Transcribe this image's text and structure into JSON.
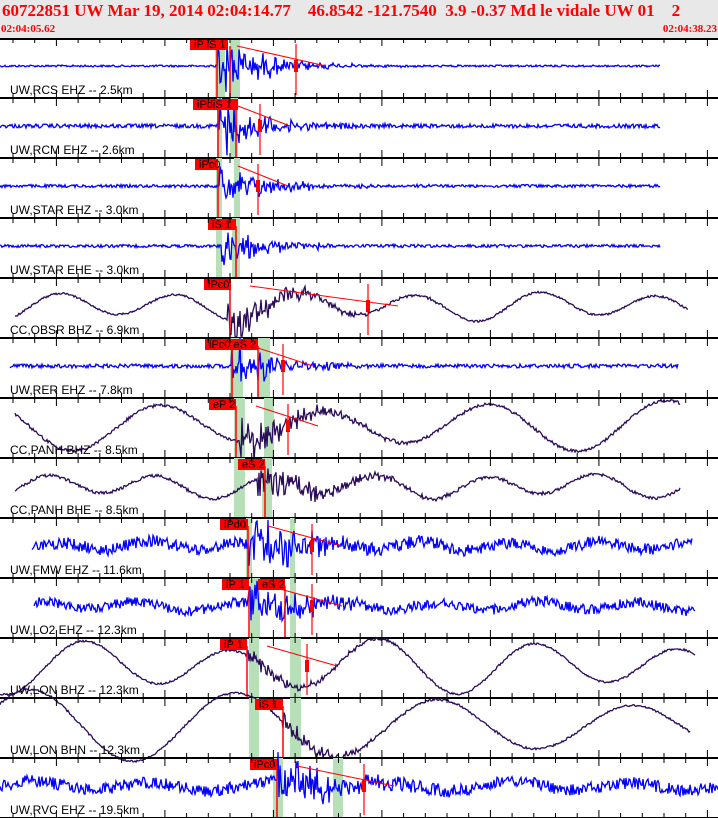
{
  "header": {
    "title": "60722851 UW Mar 19, 2014 02:04:14.77    46.8542 -121.7540  3.9 -0.37 Md le vidale UW 01    2",
    "start_time": "02:04:05.62",
    "end_time": "02:04:38.23"
  },
  "colors": {
    "header_text": "#ff0000",
    "short_period": "#0000ff",
    "broadband": "#2a0c5a",
    "pick": "#ff0000",
    "pick_window": "#b8e0b8"
  },
  "chart_data": {
    "type": "line",
    "x_range_labels": [
      "02:04:05.62",
      "02:04:38.23"
    ],
    "duration_s": 32.61,
    "traces": [
      {
        "label": "UW,RCS EHZ -- 2.5km",
        "kind": "short_period",
        "picks": [
          "iP iS 1"
        ]
      },
      {
        "label": "UW,RCM EHZ -- 2.6km",
        "kind": "short_period",
        "picks": [
          "iPdiS 1"
        ]
      },
      {
        "label": "UW,STAR EHZ -- 3.0km",
        "kind": "short_period",
        "picks": [
          "iPc0"
        ]
      },
      {
        "label": "UW,STAR EHE -- 3.0km",
        "kind": "short_period",
        "picks": [
          "iS 1"
        ]
      },
      {
        "label": "CC,OBSR BHZ -- 6.9km",
        "kind": "broadband",
        "picks": [
          "iPc0"
        ]
      },
      {
        "label": "UW,RER EHZ -- 7.8km",
        "kind": "short_period",
        "picks": [
          "iPc0 eS 2"
        ]
      },
      {
        "label": "CC,PANH BHZ -- 8.5km",
        "kind": "broadband",
        "picks": [
          "eP 2"
        ]
      },
      {
        "label": "CC,PANH BHE -- 8.5km",
        "kind": "broadband",
        "picks": [
          "eS 2"
        ]
      },
      {
        "label": "UW,FMW EHZ -- 11.6km",
        "kind": "short_period",
        "picks": [
          "iPd0"
        ]
      },
      {
        "label": "UW,LO2 EHZ -- 12.3km",
        "kind": "short_period",
        "picks": [
          "iP 1",
          "eS 2"
        ]
      },
      {
        "label": "UW,LON BHZ -- 12.3km",
        "kind": "broadband",
        "picks": [
          "iP 1"
        ]
      },
      {
        "label": "UW,LON BHN -- 12.3km",
        "kind": "broadband",
        "picks": [
          "iS 1"
        ]
      },
      {
        "label": "UW,RVC EHZ -- 19.5km",
        "kind": "short_period",
        "picks": [
          "iPc0"
        ]
      }
    ]
  }
}
